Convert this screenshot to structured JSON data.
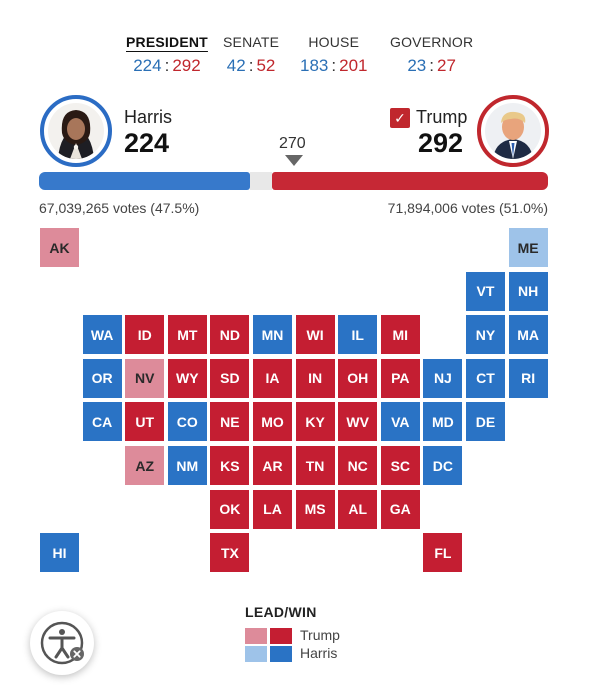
{
  "tabs": [
    {
      "name": "PRESIDENT",
      "dem": "224",
      "rep": "292",
      "sep": ":"
    },
    {
      "name": "SENATE",
      "dem": "42",
      "rep": "52",
      "sep": ":"
    },
    {
      "name": "HOUSE",
      "dem": "183",
      "rep": "201",
      "sep": ":"
    },
    {
      "name": "GOVERNOR",
      "dem": "23",
      "rep": "27",
      "sep": ":"
    }
  ],
  "candidates": {
    "harris": {
      "name": "Harris",
      "electoral_votes": "224",
      "popular_vote": "67,039,265 votes (47.5%)",
      "color": "#2b6cc4"
    },
    "trump": {
      "name": "Trump",
      "electoral_votes": "292",
      "popular_vote": "71,894,006 votes (51.0%)",
      "color": "#c0272d",
      "check_icon": "✓"
    }
  },
  "threshold": "270",
  "results_bar": {
    "harris_fraction": 0.416,
    "trump_fraction": 0.543
  },
  "states": [
    {
      "abbr": "AK",
      "status": "r"
    },
    {
      "abbr": "ME",
      "status": "d"
    },
    {
      "abbr": "VT",
      "status": "D"
    },
    {
      "abbr": "NH",
      "status": "D"
    },
    {
      "abbr": "WA",
      "status": "D"
    },
    {
      "abbr": "ID",
      "status": "R"
    },
    {
      "abbr": "MT",
      "status": "R"
    },
    {
      "abbr": "ND",
      "status": "R"
    },
    {
      "abbr": "MN",
      "status": "D"
    },
    {
      "abbr": "WI",
      "status": "R"
    },
    {
      "abbr": "IL",
      "status": "D"
    },
    {
      "abbr": "MI",
      "status": "R"
    },
    {
      "abbr": "NY",
      "status": "D"
    },
    {
      "abbr": "MA",
      "status": "D"
    },
    {
      "abbr": "OR",
      "status": "D"
    },
    {
      "abbr": "NV",
      "status": "r"
    },
    {
      "abbr": "WY",
      "status": "R"
    },
    {
      "abbr": "SD",
      "status": "R"
    },
    {
      "abbr": "IA",
      "status": "R"
    },
    {
      "abbr": "IN",
      "status": "R"
    },
    {
      "abbr": "OH",
      "status": "R"
    },
    {
      "abbr": "PA",
      "status": "R"
    },
    {
      "abbr": "NJ",
      "status": "D"
    },
    {
      "abbr": "CT",
      "status": "D"
    },
    {
      "abbr": "RI",
      "status": "D"
    },
    {
      "abbr": "CA",
      "status": "D"
    },
    {
      "abbr": "UT",
      "status": "R"
    },
    {
      "abbr": "CO",
      "status": "D"
    },
    {
      "abbr": "NE",
      "status": "R"
    },
    {
      "abbr": "MO",
      "status": "R"
    },
    {
      "abbr": "KY",
      "status": "R"
    },
    {
      "abbr": "WV",
      "status": "R"
    },
    {
      "abbr": "VA",
      "status": "D"
    },
    {
      "abbr": "MD",
      "status": "D"
    },
    {
      "abbr": "DE",
      "status": "D"
    },
    {
      "abbr": "AZ",
      "status": "r"
    },
    {
      "abbr": "NM",
      "status": "D"
    },
    {
      "abbr": "KS",
      "status": "R"
    },
    {
      "abbr": "AR",
      "status": "R"
    },
    {
      "abbr": "TN",
      "status": "R"
    },
    {
      "abbr": "NC",
      "status": "R"
    },
    {
      "abbr": "SC",
      "status": "R"
    },
    {
      "abbr": "DC",
      "status": "D"
    },
    {
      "abbr": "OK",
      "status": "R"
    },
    {
      "abbr": "LA",
      "status": "R"
    },
    {
      "abbr": "MS",
      "status": "R"
    },
    {
      "abbr": "AL",
      "status": "R"
    },
    {
      "abbr": "GA",
      "status": "R"
    },
    {
      "abbr": "HI",
      "status": "D"
    },
    {
      "abbr": "TX",
      "status": "R"
    },
    {
      "abbr": "FL",
      "status": "R"
    }
  ],
  "legend": {
    "title": "LEAD/WIN",
    "trump_label": "Trump",
    "harris_label": "Harris",
    "colors": {
      "rep_lead": "#dd8b9a",
      "rep_win": "#c41e32",
      "dem_lead": "#9ec3e9",
      "dem_win": "#2a73c5"
    }
  },
  "accessibility_button": {
    "icon": "accessibility-icon"
  }
}
